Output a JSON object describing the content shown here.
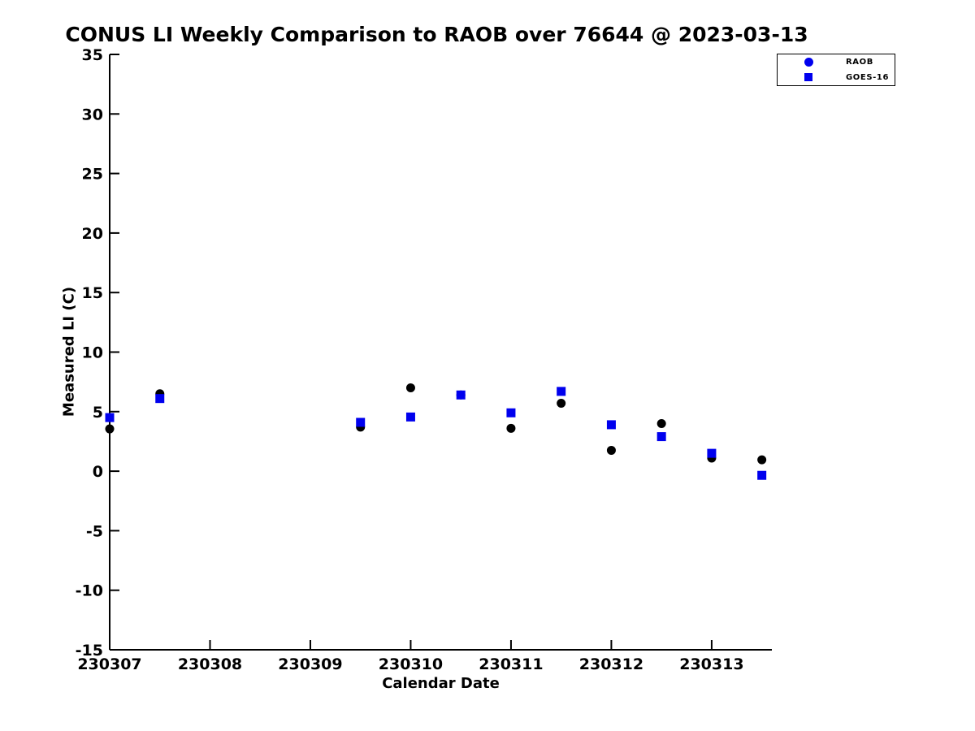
{
  "chart_data": {
    "type": "scatter",
    "title": "CONUS LI Weekly Comparison to RAOB over 76644 @ 2023-03-13",
    "xlabel": "Calendar Date",
    "ylabel": "Measured LI (C)",
    "xlim": [
      230307,
      230313.6
    ],
    "ylim": [
      -15,
      35
    ],
    "xticks": [
      230307,
      230308,
      230309,
      230310,
      230311,
      230312,
      230313
    ],
    "yticks": [
      -15,
      -10,
      -5,
      0,
      5,
      10,
      15,
      20,
      25,
      30,
      35
    ],
    "grid": false,
    "axis_color": "#000000",
    "legend": {
      "position": "top-right",
      "entries": [
        {
          "label": "RAOB",
          "marker": "circle",
          "color": "#0000EE"
        },
        {
          "label": "GOES-16",
          "marker": "square",
          "color": "#0000EE"
        }
      ]
    },
    "series": [
      {
        "name": "RAOB",
        "marker": "circle",
        "color": "#000000",
        "x": [
          230307,
          230307.5,
          230309.5,
          230310,
          230310.5,
          230311,
          230311.5,
          230312,
          230312.5,
          230313,
          230313.5
        ],
        "y": [
          3.55,
          6.5,
          3.7,
          7.0,
          6.4,
          3.6,
          5.7,
          1.75,
          4.0,
          1.1,
          0.95
        ]
      },
      {
        "name": "GOES-16",
        "marker": "square",
        "color": "#0000EE",
        "x": [
          230307,
          230307.5,
          230309.5,
          230310,
          230310.5,
          230311,
          230311.5,
          230312,
          230312.5,
          230313,
          230313.5
        ],
        "y": [
          4.5,
          6.1,
          4.1,
          4.55,
          6.4,
          4.9,
          6.7,
          3.9,
          2.9,
          1.5,
          -0.35
        ]
      }
    ]
  }
}
